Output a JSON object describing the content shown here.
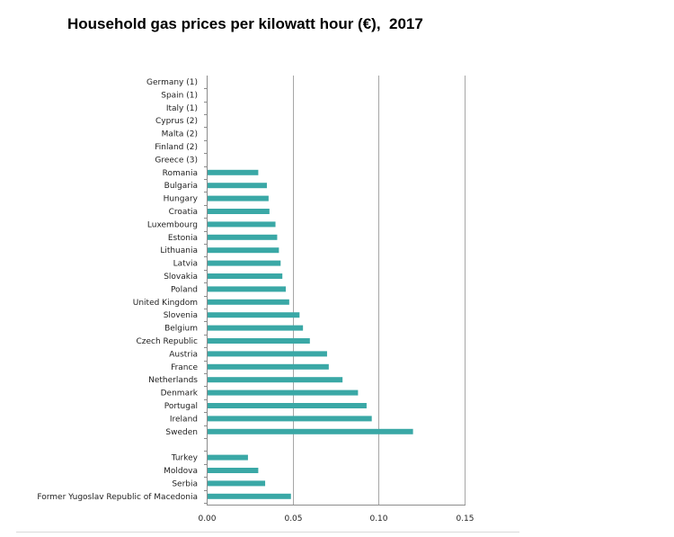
{
  "chart_data": {
    "type": "bar",
    "orientation": "horizontal",
    "title": "Household gas prices per kilowatt hour (€),  2017",
    "xlabel": "",
    "ylabel": "",
    "xlim": [
      0,
      0.15
    ],
    "x_ticks": [
      "0.00",
      "0.05",
      "0.10",
      "0.15"
    ],
    "x_tick_values": [
      0,
      0.05,
      0.1,
      0.15
    ],
    "grid": "vertical",
    "bar_color": "#3aa8a6",
    "categories": [
      "Germany (1)",
      "Spain (1)",
      "Italy (1)",
      "Cyprus (2)",
      "Malta (2)",
      "Finland (2)",
      "Greece (3)",
      "Romania",
      "Bulgaria",
      "Hungary",
      "Croatia",
      "Luxembourg",
      "Estonia",
      "Lithuania",
      "Latvia",
      "Slovakia",
      "Poland",
      "United Kingdom",
      "Slovenia",
      "Belgium",
      "Czech Republic",
      "Austria",
      "France",
      "Netherlands",
      "Denmark",
      "Portugal",
      "Ireland",
      "Sweden",
      "",
      "Turkey",
      "Moldova",
      "Serbia",
      "Former Yugoslav Republic of Macedonia"
    ],
    "values": [
      null,
      null,
      null,
      null,
      null,
      null,
      null,
      0.03,
      0.035,
      0.036,
      0.0365,
      0.04,
      0.041,
      0.042,
      0.043,
      0.044,
      0.046,
      0.048,
      0.054,
      0.056,
      0.06,
      0.07,
      0.071,
      0.079,
      0.088,
      0.093,
      0.096,
      0.12,
      null,
      0.024,
      0.03,
      0.034,
      0.049
    ]
  }
}
